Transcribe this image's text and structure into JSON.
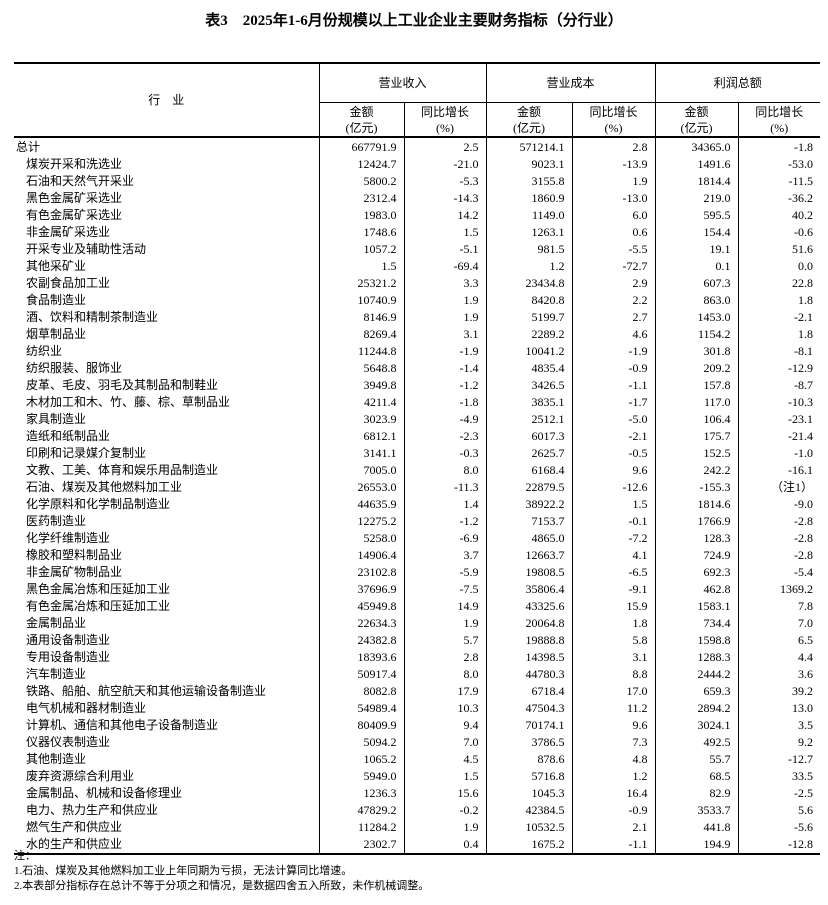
{
  "title": "表3　2025年1-6月份规模以上工业企业主要财务指标（分行业）",
  "header": {
    "industry": "行　业",
    "groups": [
      "营业收入",
      "营业成本",
      "利润总额"
    ],
    "amount": "金额",
    "amount_unit": "(亿元)",
    "growth": "同比增长",
    "growth_unit": "(%)"
  },
  "rows": [
    [
      "总计",
      "667791.9",
      "2.5",
      "571214.1",
      "2.8",
      "34365.0",
      "-1.8"
    ],
    [
      "煤炭开采和洗选业",
      "12424.7",
      "-21.0",
      "9023.1",
      "-13.9",
      "1491.6",
      "-53.0"
    ],
    [
      "石油和天然气开采业",
      "5800.2",
      "-5.3",
      "3155.8",
      "1.9",
      "1814.4",
      "-11.5"
    ],
    [
      "黑色金属矿采选业",
      "2312.4",
      "-14.3",
      "1860.9",
      "-13.0",
      "219.0",
      "-36.2"
    ],
    [
      "有色金属矿采选业",
      "1983.0",
      "14.2",
      "1149.0",
      "6.0",
      "595.5",
      "40.2"
    ],
    [
      "非金属矿采选业",
      "1748.6",
      "1.5",
      "1263.1",
      "0.6",
      "154.4",
      "-0.6"
    ],
    [
      "开采专业及辅助性活动",
      "1057.2",
      "-5.1",
      "981.5",
      "-5.5",
      "19.1",
      "51.6"
    ],
    [
      "其他采矿业",
      "1.5",
      "-69.4",
      "1.2",
      "-72.7",
      "0.1",
      "0.0"
    ],
    [
      "农副食品加工业",
      "25321.2",
      "3.3",
      "23434.8",
      "2.9",
      "607.3",
      "22.8"
    ],
    [
      "食品制造业",
      "10740.9",
      "1.9",
      "8420.8",
      "2.2",
      "863.0",
      "1.8"
    ],
    [
      "酒、饮料和精制茶制造业",
      "8146.9",
      "1.9",
      "5199.7",
      "2.7",
      "1453.0",
      "-2.1"
    ],
    [
      "烟草制品业",
      "8269.4",
      "3.1",
      "2289.2",
      "4.6",
      "1154.2",
      "1.8"
    ],
    [
      "纺织业",
      "11244.8",
      "-1.9",
      "10041.2",
      "-1.9",
      "301.8",
      "-8.1"
    ],
    [
      "纺织服装、服饰业",
      "5648.8",
      "-1.4",
      "4835.4",
      "-0.9",
      "209.2",
      "-12.9"
    ],
    [
      "皮革、毛皮、羽毛及其制品和制鞋业",
      "3949.8",
      "-1.2",
      "3426.5",
      "-1.1",
      "157.8",
      "-8.7"
    ],
    [
      "木材加工和木、竹、藤、棕、草制品业",
      "4211.4",
      "-1.8",
      "3835.1",
      "-1.7",
      "117.0",
      "-10.3"
    ],
    [
      "家具制造业",
      "3023.9",
      "-4.9",
      "2512.1",
      "-5.0",
      "106.4",
      "-23.1"
    ],
    [
      "造纸和纸制品业",
      "6812.1",
      "-2.3",
      "6017.3",
      "-2.1",
      "175.7",
      "-21.4"
    ],
    [
      "印刷和记录媒介复制业",
      "3141.1",
      "-0.3",
      "2625.7",
      "-0.5",
      "152.5",
      "-1.0"
    ],
    [
      "文教、工美、体育和娱乐用品制造业",
      "7005.0",
      "8.0",
      "6168.4",
      "9.6",
      "242.2",
      "-16.1"
    ],
    [
      "石油、煤炭及其他燃料加工业",
      "26553.0",
      "-11.3",
      "22879.5",
      "-12.6",
      "-155.3",
      "（注1）"
    ],
    [
      "化学原料和化学制品制造业",
      "44635.9",
      "1.4",
      "38922.2",
      "1.5",
      "1814.6",
      "-9.0"
    ],
    [
      "医药制造业",
      "12275.2",
      "-1.2",
      "7153.7",
      "-0.1",
      "1766.9",
      "-2.8"
    ],
    [
      "化学纤维制造业",
      "5258.0",
      "-6.9",
      "4865.0",
      "-7.2",
      "128.3",
      "-2.8"
    ],
    [
      "橡胶和塑料制品业",
      "14906.4",
      "3.7",
      "12663.7",
      "4.1",
      "724.9",
      "-2.8"
    ],
    [
      "非金属矿物制品业",
      "23102.8",
      "-5.9",
      "19808.5",
      "-6.5",
      "692.3",
      "-5.4"
    ],
    [
      "黑色金属冶炼和压延加工业",
      "37696.9",
      "-7.5",
      "35806.4",
      "-9.1",
      "462.8",
      "1369.2"
    ],
    [
      "有色金属冶炼和压延加工业",
      "45949.8",
      "14.9",
      "43325.6",
      "15.9",
      "1583.1",
      "7.8"
    ],
    [
      "金属制品业",
      "22634.3",
      "1.9",
      "20064.8",
      "1.8",
      "734.4",
      "7.0"
    ],
    [
      "通用设备制造业",
      "24382.8",
      "5.7",
      "19888.8",
      "5.8",
      "1598.8",
      "6.5"
    ],
    [
      "专用设备制造业",
      "18393.6",
      "2.8",
      "14398.5",
      "3.1",
      "1288.3",
      "4.4"
    ],
    [
      "汽车制造业",
      "50917.4",
      "8.0",
      "44780.3",
      "8.8",
      "2444.2",
      "3.6"
    ],
    [
      "铁路、船舶、航空航天和其他运输设备制造业",
      "8082.8",
      "17.9",
      "6718.4",
      "17.0",
      "659.3",
      "39.2"
    ],
    [
      "电气机械和器材制造业",
      "54989.4",
      "10.3",
      "47504.3",
      "11.2",
      "2894.2",
      "13.0"
    ],
    [
      "计算机、通信和其他电子设备制造业",
      "80409.9",
      "9.4",
      "70174.1",
      "9.6",
      "3024.1",
      "3.5"
    ],
    [
      "仪器仪表制造业",
      "5094.2",
      "7.0",
      "3786.5",
      "7.3",
      "492.5",
      "9.2"
    ],
    [
      "其他制造业",
      "1065.2",
      "4.5",
      "878.6",
      "4.8",
      "55.7",
      "-12.7"
    ],
    [
      "废弃资源综合利用业",
      "5949.0",
      "1.5",
      "5716.8",
      "1.2",
      "68.5",
      "33.5"
    ],
    [
      "金属制品、机械和设备修理业",
      "1236.3",
      "15.6",
      "1045.3",
      "16.4",
      "82.9",
      "-2.5"
    ],
    [
      "电力、热力生产和供应业",
      "47829.2",
      "-0.2",
      "42384.5",
      "-0.9",
      "3533.7",
      "5.6"
    ],
    [
      "燃气生产和供应业",
      "11284.2",
      "1.9",
      "10532.5",
      "2.1",
      "441.8",
      "-5.6"
    ],
    [
      "水的生产和供应业",
      "2302.7",
      "0.4",
      "1675.2",
      "-1.1",
      "194.9",
      "-12.8"
    ]
  ],
  "notes": {
    "heading": "注：",
    "items": [
      "1.石油、煤炭及其他燃料加工业上年同期为亏损，无法计算同比增速。",
      "2.本表部分指标存在总计不等于分项之和情况，是数据四舍五入所致，未作机械调整。"
    ]
  }
}
